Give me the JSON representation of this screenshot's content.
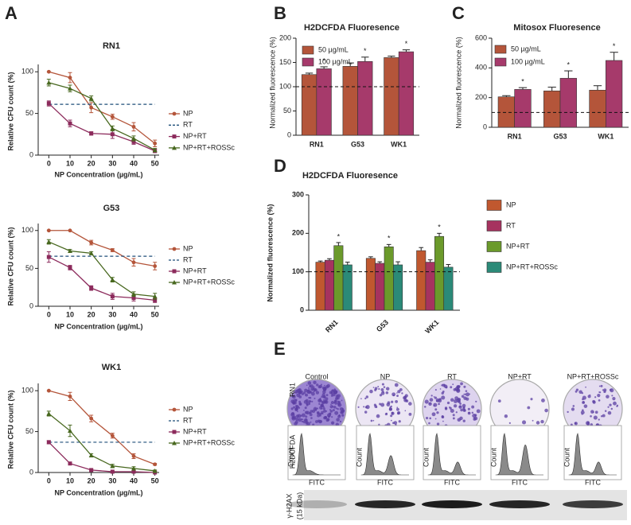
{
  "chart_data": [
    {
      "type": "line",
      "panel": "A",
      "title": "RN1",
      "x_label": "NP Concentration (µg/mL)",
      "y_label": "Relative CFU count (%)",
      "x": [
        0,
        10,
        20,
        30,
        40,
        50
      ],
      "xlim": [
        -5,
        52
      ],
      "xticks": [
        0,
        10,
        20,
        30,
        40,
        50
      ],
      "ylim": [
        0,
        105
      ],
      "yticks": [
        0,
        50,
        100
      ],
      "series": [
        {
          "name": "NP",
          "color": "#b4553a",
          "marker": "circle",
          "values": [
            100,
            93,
            57,
            46,
            34,
            14
          ],
          "errors": [
            0,
            6,
            6,
            3,
            5,
            4
          ]
        },
        {
          "name": "RT",
          "color": "#1f4e79",
          "dashed": true,
          "value": 61
        },
        {
          "name": "NP+RT",
          "color": "#8c2b5c",
          "marker": "square",
          "values": [
            62,
            38,
            26,
            25,
            16,
            5
          ],
          "errors": [
            3,
            4,
            2,
            5,
            3,
            2
          ]
        },
        {
          "name": "NP+RT+ROSSc",
          "color": "#48681f",
          "marker": "triangle",
          "values": [
            87,
            80,
            68,
            32,
            20,
            6
          ],
          "errors": [
            4,
            4,
            3,
            3,
            3,
            2
          ]
        }
      ]
    },
    {
      "type": "line",
      "title": "G53",
      "x_label": "NP Concentration (µg/mL)",
      "y_label": "Relative CFU count (%)",
      "x": [
        0,
        10,
        20,
        30,
        40,
        50
      ],
      "xlim": [
        -5,
        52
      ],
      "xticks": [
        0,
        10,
        20,
        30,
        40,
        50
      ],
      "ylim": [
        0,
        105
      ],
      "yticks": [
        0,
        50,
        100
      ],
      "series": [
        {
          "name": "NP",
          "color": "#b4553a",
          "marker": "circle",
          "values": [
            100,
            100,
            84,
            74,
            58,
            53
          ],
          "errors": [
            0,
            0,
            3,
            2,
            5,
            5
          ]
        },
        {
          "name": "RT",
          "color": "#1f4e79",
          "dashed": true,
          "value": 66
        },
        {
          "name": "NP+RT",
          "color": "#8c2b5c",
          "marker": "square",
          "values": [
            65,
            51,
            24,
            13,
            11,
            8
          ],
          "errors": [
            7,
            3,
            3,
            4,
            4,
            3
          ]
        },
        {
          "name": "NP+RT+ROSSc",
          "color": "#48681f",
          "marker": "triangle",
          "values": [
            85,
            73,
            70,
            35,
            16,
            13
          ],
          "errors": [
            3,
            2,
            2,
            3,
            3,
            4
          ]
        }
      ]
    },
    {
      "type": "line",
      "title": "WK1",
      "x_label": "NP Concentration (µg/mL)",
      "y_label": "Relative CFU count (%)",
      "x": [
        0,
        10,
        20,
        30,
        40,
        50
      ],
      "xlim": [
        -5,
        52
      ],
      "xticks": [
        0,
        10,
        20,
        30,
        40,
        50
      ],
      "ylim": [
        0,
        105
      ],
      "yticks": [
        0,
        50,
        100
      ],
      "series": [
        {
          "name": "NP",
          "color": "#b4553a",
          "marker": "circle",
          "values": [
            100,
            93,
            66,
            45,
            20,
            10
          ],
          "errors": [
            0,
            5,
            4,
            3,
            3,
            1
          ]
        },
        {
          "name": "RT",
          "color": "#1f4e79",
          "dashed": true,
          "value": 37
        },
        {
          "name": "NP+RT",
          "color": "#8c2b5c",
          "marker": "square",
          "values": [
            37,
            11,
            3,
            1,
            1,
            0
          ],
          "errors": [
            2,
            1,
            1,
            0,
            0,
            0
          ]
        },
        {
          "name": "NP+RT+ROSSc",
          "color": "#48681f",
          "marker": "triangle",
          "values": [
            72,
            51,
            21,
            8,
            5,
            2
          ],
          "errors": [
            3,
            7,
            2,
            2,
            2,
            1
          ]
        }
      ]
    },
    {
      "type": "bar",
      "panel": "B",
      "title": "H2DCFDA Fluoresence",
      "y_label": "Normalized fluorescence (%)",
      "categories": [
        "RN1",
        "G53",
        "WK1"
      ],
      "ylim": [
        0,
        200
      ],
      "yticks": [
        0,
        50,
        100,
        150,
        200
      ],
      "reference": 100,
      "series": [
        {
          "name": "50 µg/mL",
          "color": "#b4553a",
          "values": [
            125,
            142,
            160
          ],
          "errors": [
            3,
            7,
            3
          ]
        },
        {
          "name": "100 µg/mL",
          "color": "#a63a6b",
          "values": [
            137,
            152,
            172
          ],
          "errors": [
            4,
            9,
            4
          ],
          "significance": [
            "*",
            "*",
            "*"
          ]
        }
      ]
    },
    {
      "type": "bar",
      "panel": "C",
      "title": "Mitosox Fluoresence",
      "y_label": "Normalized fluorescence (%)",
      "categories": [
        "RN1",
        "G53",
        "WK1"
      ],
      "ylim": [
        0,
        600
      ],
      "yticks": [
        0,
        200,
        400,
        600
      ],
      "reference": 100,
      "series": [
        {
          "name": "50 µg/mL",
          "color": "#b4553a",
          "values": [
            205,
            245,
            250
          ],
          "errors": [
            8,
            25,
            30
          ]
        },
        {
          "name": "100 µg/mL",
          "color": "#a63a6b",
          "values": [
            255,
            330,
            450
          ],
          "errors": [
            12,
            50,
            55
          ],
          "significance": [
            "*",
            "*",
            "*"
          ]
        }
      ]
    },
    {
      "type": "bar",
      "panel": "D",
      "title": "H2DCFDA Fluoresence",
      "y_label": "Normalized fluorescence (%)",
      "categories": [
        "RN1",
        "G53",
        "WK1"
      ],
      "ylim": [
        0,
        300
      ],
      "yticks": [
        0,
        100,
        200,
        300
      ],
      "reference": 100,
      "series": [
        {
          "name": "NP",
          "color": "#c0582f",
          "values": [
            125,
            135,
            155
          ],
          "errors": [
            3,
            4,
            8
          ]
        },
        {
          "name": "RT",
          "color": "#a6335f",
          "values": [
            130,
            122,
            125
          ],
          "errors": [
            4,
            4,
            6
          ]
        },
        {
          "name": "NP+RT",
          "color": "#6b9a2b",
          "values": [
            168,
            165,
            192
          ],
          "errors": [
            8,
            6,
            8
          ],
          "significance": [
            "*",
            "*",
            "*"
          ]
        },
        {
          "name": "NP+RT+ROSSc",
          "color": "#2b8a78",
          "values": [
            118,
            118,
            112
          ],
          "errors": [
            7,
            8,
            7
          ]
        }
      ]
    }
  ],
  "image_panel": {
    "panel": "E",
    "columns": [
      "Control",
      "NP",
      "RT",
      "NP+RT",
      "NP+RT+ROSSc"
    ],
    "row_labels": [
      "RN1",
      "H2DCFDA"
    ],
    "blot_label": [
      "γ-H2AX",
      "(15 kDa)"
    ],
    "histogram_y_label": "Count",
    "histogram_x_label": "FITC"
  }
}
